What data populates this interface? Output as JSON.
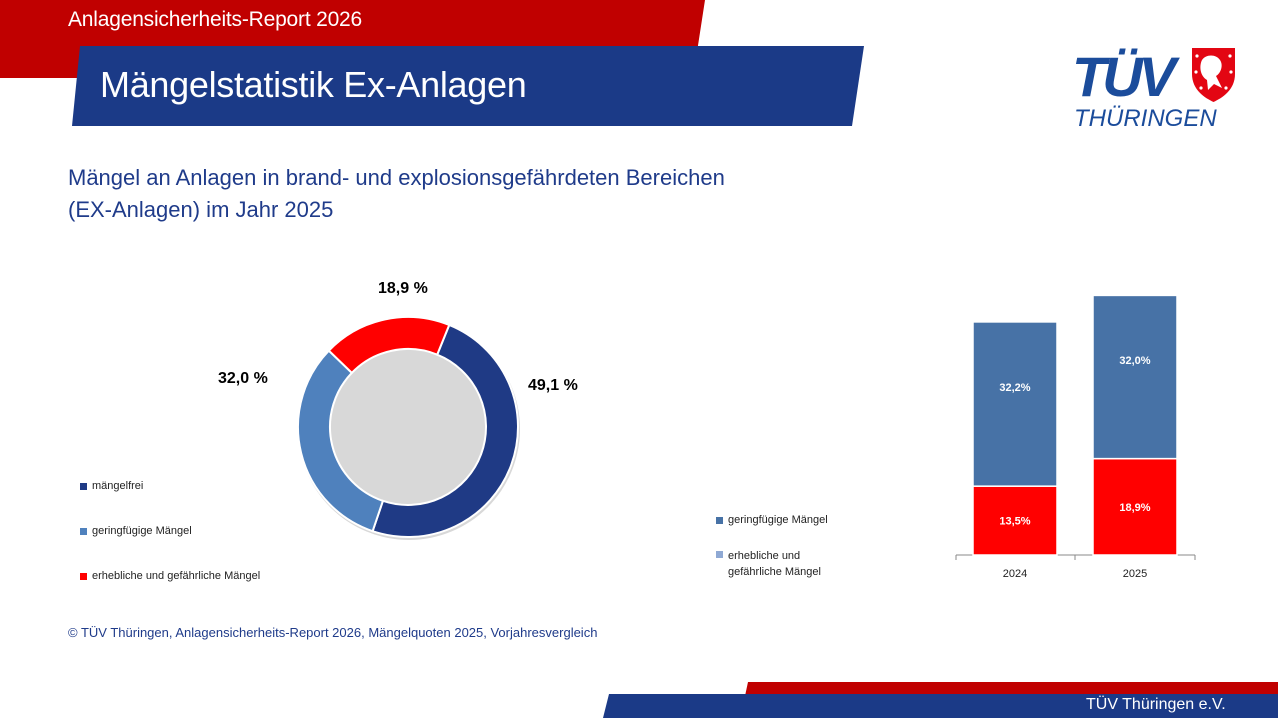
{
  "header": {
    "report_title": "Anlagensicherheits-Report 2026",
    "page_title": "Mängelstatistik Ex-Anlagen",
    "logo": {
      "name": "TÜV",
      "subname": "THÜRINGEN",
      "icon": "thuringia-lion-shield-icon"
    }
  },
  "subtitle_line1": "Mängel an Anlagen in brand- und explosionsgefährdeten Bereichen",
  "subtitle_line2": "(EX-Anlagen) im Jahr 2025",
  "source": "© TÜV Thüringen, Anlagensicherheits-Report 2026, Mängelquoten 2025, Vorjahresvergleich",
  "footer": {
    "org": "TÜV Thüringen e.V."
  },
  "colors": {
    "brand_red": "#c00000",
    "brand_blue": "#1b3a87",
    "mangelfrei": "#1f3a85",
    "gering": "#4f81bd",
    "erheblich": "#ff0000",
    "bar_gering": "#4772a6"
  },
  "chart_data": [
    {
      "type": "pie",
      "title": "Mängelquoten 2025",
      "categories": [
        "mängelfrei",
        "geringfügige Mängel",
        "erhebliche und gefährliche Mängel"
      ],
      "values": [
        49.1,
        32.0,
        18.9
      ],
      "labels": [
        "49,1 %",
        "32,0 %",
        "18,9 %"
      ],
      "colors": [
        "#1f3a85",
        "#4f81bd",
        "#ff0000"
      ],
      "legend": "left",
      "donut": true
    },
    {
      "type": "bar",
      "stacked": true,
      "categories": [
        "2024",
        "2025"
      ],
      "series": [
        {
          "name": "erhebliche und gefährliche Mängel",
          "values": [
            13.5,
            18.9
          ],
          "labels": [
            "13,5%",
            "18,9%"
          ],
          "color": "#ff0000"
        },
        {
          "name": "geringfügige Mängel",
          "values": [
            32.2,
            32.0
          ],
          "labels": [
            "32,2%",
            "32,0%"
          ],
          "color": "#4772a6"
        }
      ],
      "legend_entries": [
        {
          "label": "geringfügige Mängel",
          "color": "#4772a6"
        },
        {
          "label": "erhebliche und gefährliche Mängel",
          "color": "#8fa9d4"
        }
      ],
      "legend": "left",
      "ylim": [
        0,
        52
      ],
      "grid": false
    }
  ]
}
